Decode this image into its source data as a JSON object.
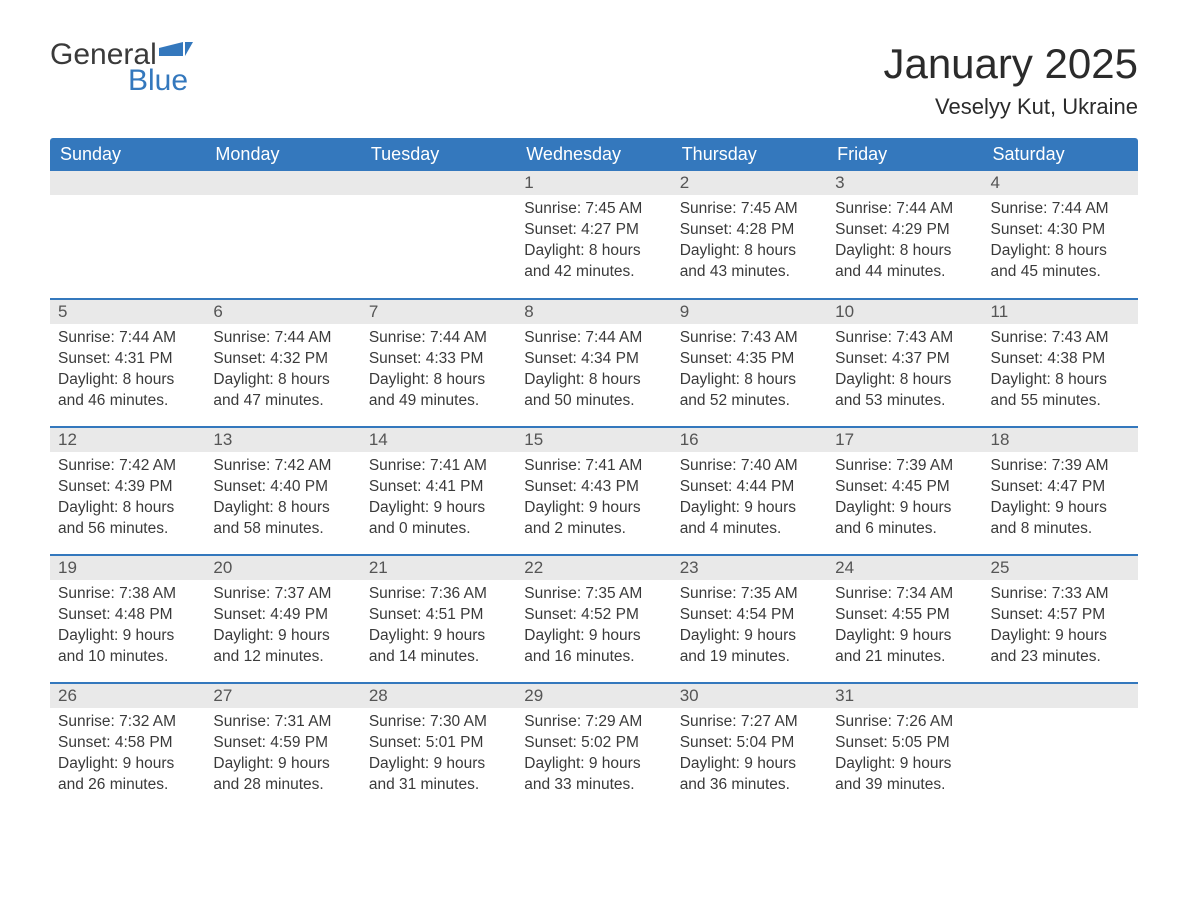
{
  "logo": {
    "word1": "General",
    "word2": "Blue"
  },
  "title": "January 2025",
  "location": "Veselyy Kut, Ukraine",
  "colors": {
    "header_bg": "#3478bd",
    "header_text": "#ffffff",
    "daynum_bg": "#e9e9e9",
    "row_border": "#3478bd",
    "body_text": "#3a3a3a",
    "logo_blue": "#3478bd",
    "page_bg": "#ffffff"
  },
  "weekdays": [
    "Sunday",
    "Monday",
    "Tuesday",
    "Wednesday",
    "Thursday",
    "Friday",
    "Saturday"
  ],
  "labels": {
    "sunrise": "Sunrise:",
    "sunset": "Sunset:",
    "daylight": "Daylight:"
  },
  "weeks": [
    [
      null,
      null,
      null,
      {
        "n": "1",
        "sunrise": "7:45 AM",
        "sunset": "4:27 PM",
        "daylight": "8 hours and 42 minutes."
      },
      {
        "n": "2",
        "sunrise": "7:45 AM",
        "sunset": "4:28 PM",
        "daylight": "8 hours and 43 minutes."
      },
      {
        "n": "3",
        "sunrise": "7:44 AM",
        "sunset": "4:29 PM",
        "daylight": "8 hours and 44 minutes."
      },
      {
        "n": "4",
        "sunrise": "7:44 AM",
        "sunset": "4:30 PM",
        "daylight": "8 hours and 45 minutes."
      }
    ],
    [
      {
        "n": "5",
        "sunrise": "7:44 AM",
        "sunset": "4:31 PM",
        "daylight": "8 hours and 46 minutes."
      },
      {
        "n": "6",
        "sunrise": "7:44 AM",
        "sunset": "4:32 PM",
        "daylight": "8 hours and 47 minutes."
      },
      {
        "n": "7",
        "sunrise": "7:44 AM",
        "sunset": "4:33 PM",
        "daylight": "8 hours and 49 minutes."
      },
      {
        "n": "8",
        "sunrise": "7:44 AM",
        "sunset": "4:34 PM",
        "daylight": "8 hours and 50 minutes."
      },
      {
        "n": "9",
        "sunrise": "7:43 AM",
        "sunset": "4:35 PM",
        "daylight": "8 hours and 52 minutes."
      },
      {
        "n": "10",
        "sunrise": "7:43 AM",
        "sunset": "4:37 PM",
        "daylight": "8 hours and 53 minutes."
      },
      {
        "n": "11",
        "sunrise": "7:43 AM",
        "sunset": "4:38 PM",
        "daylight": "8 hours and 55 minutes."
      }
    ],
    [
      {
        "n": "12",
        "sunrise": "7:42 AM",
        "sunset": "4:39 PM",
        "daylight": "8 hours and 56 minutes."
      },
      {
        "n": "13",
        "sunrise": "7:42 AM",
        "sunset": "4:40 PM",
        "daylight": "8 hours and 58 minutes."
      },
      {
        "n": "14",
        "sunrise": "7:41 AM",
        "sunset": "4:41 PM",
        "daylight": "9 hours and 0 minutes."
      },
      {
        "n": "15",
        "sunrise": "7:41 AM",
        "sunset": "4:43 PM",
        "daylight": "9 hours and 2 minutes."
      },
      {
        "n": "16",
        "sunrise": "7:40 AM",
        "sunset": "4:44 PM",
        "daylight": "9 hours and 4 minutes."
      },
      {
        "n": "17",
        "sunrise": "7:39 AM",
        "sunset": "4:45 PM",
        "daylight": "9 hours and 6 minutes."
      },
      {
        "n": "18",
        "sunrise": "7:39 AM",
        "sunset": "4:47 PM",
        "daylight": "9 hours and 8 minutes."
      }
    ],
    [
      {
        "n": "19",
        "sunrise": "7:38 AM",
        "sunset": "4:48 PM",
        "daylight": "9 hours and 10 minutes."
      },
      {
        "n": "20",
        "sunrise": "7:37 AM",
        "sunset": "4:49 PM",
        "daylight": "9 hours and 12 minutes."
      },
      {
        "n": "21",
        "sunrise": "7:36 AM",
        "sunset": "4:51 PM",
        "daylight": "9 hours and 14 minutes."
      },
      {
        "n": "22",
        "sunrise": "7:35 AM",
        "sunset": "4:52 PM",
        "daylight": "9 hours and 16 minutes."
      },
      {
        "n": "23",
        "sunrise": "7:35 AM",
        "sunset": "4:54 PM",
        "daylight": "9 hours and 19 minutes."
      },
      {
        "n": "24",
        "sunrise": "7:34 AM",
        "sunset": "4:55 PM",
        "daylight": "9 hours and 21 minutes."
      },
      {
        "n": "25",
        "sunrise": "7:33 AM",
        "sunset": "4:57 PM",
        "daylight": "9 hours and 23 minutes."
      }
    ],
    [
      {
        "n": "26",
        "sunrise": "7:32 AM",
        "sunset": "4:58 PM",
        "daylight": "9 hours and 26 minutes."
      },
      {
        "n": "27",
        "sunrise": "7:31 AM",
        "sunset": "4:59 PM",
        "daylight": "9 hours and 28 minutes."
      },
      {
        "n": "28",
        "sunrise": "7:30 AM",
        "sunset": "5:01 PM",
        "daylight": "9 hours and 31 minutes."
      },
      {
        "n": "29",
        "sunrise": "7:29 AM",
        "sunset": "5:02 PM",
        "daylight": "9 hours and 33 minutes."
      },
      {
        "n": "30",
        "sunrise": "7:27 AM",
        "sunset": "5:04 PM",
        "daylight": "9 hours and 36 minutes."
      },
      {
        "n": "31",
        "sunrise": "7:26 AM",
        "sunset": "5:05 PM",
        "daylight": "9 hours and 39 minutes."
      },
      null
    ]
  ]
}
